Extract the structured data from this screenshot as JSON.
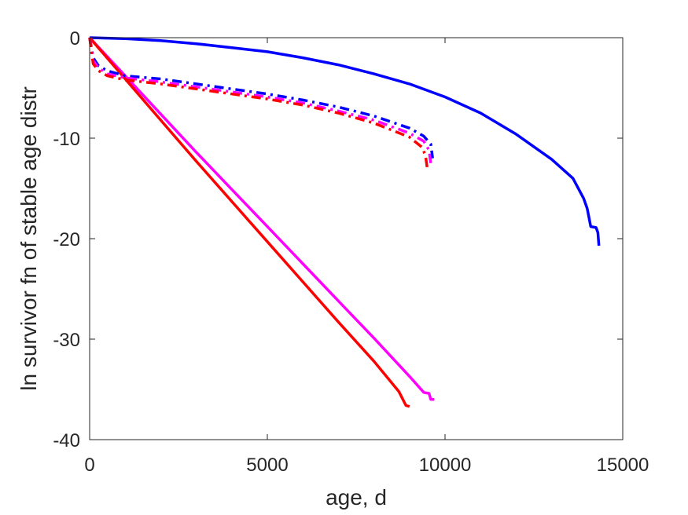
{
  "chart_data": {
    "type": "line",
    "title": "",
    "xlabel": "age, d",
    "ylabel": "ln survivor fn of stable age distr",
    "xlim": [
      0,
      15000
    ],
    "ylim": [
      -40,
      0
    ],
    "xticks": [
      0,
      5000,
      10000,
      15000
    ],
    "yticks": [
      0,
      -10,
      -20,
      -30,
      -40
    ],
    "grid": false,
    "legend": "none",
    "series": [
      {
        "color": "#0000ff",
        "style": "solid",
        "points": [
          [
            0,
            0
          ],
          [
            1000,
            -0.1
          ],
          [
            2000,
            -0.3
          ],
          [
            3000,
            -0.6
          ],
          [
            4000,
            -1.0
          ],
          [
            5000,
            -1.4
          ],
          [
            6000,
            -2.0
          ],
          [
            7000,
            -2.7
          ],
          [
            8000,
            -3.6
          ],
          [
            9000,
            -4.6
          ],
          [
            10000,
            -5.9
          ],
          [
            11000,
            -7.5
          ],
          [
            12000,
            -9.6
          ],
          [
            13000,
            -12.1
          ],
          [
            13600,
            -14.0
          ],
          [
            13900,
            -16.0
          ],
          [
            14000,
            -17.0
          ],
          [
            14100,
            -18.8
          ],
          [
            14250,
            -18.9
          ],
          [
            14300,
            -19.4
          ],
          [
            14330,
            -20.7
          ]
        ]
      },
      {
        "color": "#ff00ff",
        "style": "solid",
        "points": [
          [
            0,
            0
          ],
          [
            1000,
            -3.8
          ],
          [
            2000,
            -7.6
          ],
          [
            3000,
            -11.4
          ],
          [
            4000,
            -15.1
          ],
          [
            5000,
            -18.8
          ],
          [
            6000,
            -22.5
          ],
          [
            7000,
            -26.2
          ],
          [
            8000,
            -29.9
          ],
          [
            9000,
            -33.7
          ],
          [
            9400,
            -35.3
          ],
          [
            9550,
            -35.4
          ],
          [
            9600,
            -36.0
          ],
          [
            9700,
            -36.0
          ]
        ]
      },
      {
        "color": "#ff0000",
        "style": "solid",
        "points": [
          [
            0,
            0
          ],
          [
            1000,
            -4.1
          ],
          [
            2000,
            -8.2
          ],
          [
            3000,
            -12.3
          ],
          [
            4000,
            -16.3
          ],
          [
            5000,
            -20.3
          ],
          [
            6000,
            -24.3
          ],
          [
            7000,
            -28.3
          ],
          [
            8000,
            -32.2
          ],
          [
            8700,
            -35.2
          ],
          [
            8900,
            -36.6
          ],
          [
            9000,
            -36.7
          ]
        ]
      },
      {
        "color": "#0000ff",
        "style": "dashdot",
        "points": [
          [
            0,
            0
          ],
          [
            100,
            -2.0
          ],
          [
            250,
            -2.8
          ],
          [
            500,
            -3.3
          ],
          [
            1000,
            -3.8
          ],
          [
            2000,
            -4.1
          ],
          [
            3000,
            -4.6
          ],
          [
            4000,
            -5.1
          ],
          [
            5000,
            -5.6
          ],
          [
            6000,
            -6.2
          ],
          [
            7000,
            -6.9
          ],
          [
            8000,
            -7.8
          ],
          [
            9000,
            -9.0
          ],
          [
            9400,
            -9.8
          ],
          [
            9600,
            -10.6
          ],
          [
            9650,
            -12.0
          ]
        ]
      },
      {
        "color": "#ff00ff",
        "style": "dashdot",
        "points": [
          [
            0,
            0
          ],
          [
            100,
            -2.3
          ],
          [
            250,
            -3.0
          ],
          [
            500,
            -3.6
          ],
          [
            1000,
            -4.0
          ],
          [
            2000,
            -4.4
          ],
          [
            3000,
            -4.9
          ],
          [
            4000,
            -5.4
          ],
          [
            5000,
            -5.9
          ],
          [
            6000,
            -6.5
          ],
          [
            7000,
            -7.3
          ],
          [
            8000,
            -8.2
          ],
          [
            9000,
            -9.5
          ],
          [
            9400,
            -10.3
          ],
          [
            9550,
            -11.2
          ],
          [
            9600,
            -12.6
          ]
        ]
      },
      {
        "color": "#ff0000",
        "style": "dashdot",
        "points": [
          [
            0,
            0
          ],
          [
            100,
            -2.6
          ],
          [
            250,
            -3.3
          ],
          [
            500,
            -3.8
          ],
          [
            1000,
            -4.2
          ],
          [
            2000,
            -4.6
          ],
          [
            3000,
            -5.1
          ],
          [
            4000,
            -5.6
          ],
          [
            5000,
            -6.1
          ],
          [
            6000,
            -6.7
          ],
          [
            7000,
            -7.5
          ],
          [
            8000,
            -8.5
          ],
          [
            9000,
            -9.9
          ],
          [
            9350,
            -10.9
          ],
          [
            9450,
            -11.7
          ],
          [
            9500,
            -13.0
          ]
        ]
      }
    ]
  }
}
